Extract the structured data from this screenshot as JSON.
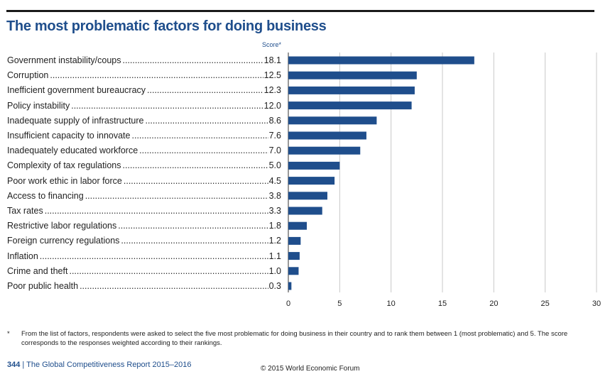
{
  "header": {
    "title": "The most problematic factors for doing business"
  },
  "chart_data": {
    "type": "bar",
    "orientation": "horizontal",
    "value_label": "Score*",
    "categories": [
      "Government instability/coups",
      "Corruption",
      "Inefficient government bureaucracy",
      "Policy instability",
      "Inadequate supply of infrastructure",
      "Insufficient capacity to innovate",
      "Inadequately educated workforce",
      "Complexity of tax regulations",
      "Poor work ethic in labor force",
      "Access to financing",
      "Tax rates",
      "Restrictive labor regulations",
      "Foreign currency regulations",
      "Inflation",
      "Crime and theft",
      "Poor public health"
    ],
    "values": [
      18.1,
      12.5,
      12.3,
      12.0,
      8.6,
      7.6,
      7.0,
      5.0,
      4.5,
      3.8,
      3.3,
      1.8,
      1.2,
      1.1,
      1.0,
      0.3
    ],
    "value_labels": [
      "18.1",
      "12.5",
      "12.3",
      "12.0",
      "8.6",
      "7.6",
      "7.0",
      "5.0",
      "4.5",
      "3.8",
      "3.3",
      "1.8",
      "1.2",
      "1.1",
      "1.0",
      "0.3"
    ],
    "xlim": [
      0,
      30
    ],
    "xticks": [
      0,
      5,
      10,
      15,
      20,
      25,
      30
    ],
    "xtick_labels": [
      "0",
      "5",
      "10",
      "15",
      "20",
      "25",
      "30"
    ],
    "grid": true,
    "bar_color": "#1f4e8c",
    "grid_color": "#c8c8c8"
  },
  "footnote": {
    "marker": "*",
    "text": "From the list of factors, respondents were asked to select the five most problematic for doing business in their country and to rank them between 1 (most problematic) and 5. The score corresponds to the responses weighted according to their rankings."
  },
  "footer": {
    "page_number": "344",
    "separator": "|",
    "report_name": "The Global Competitiveness Report 2015–2016",
    "copyright": "© 2015 World Economic Forum"
  }
}
